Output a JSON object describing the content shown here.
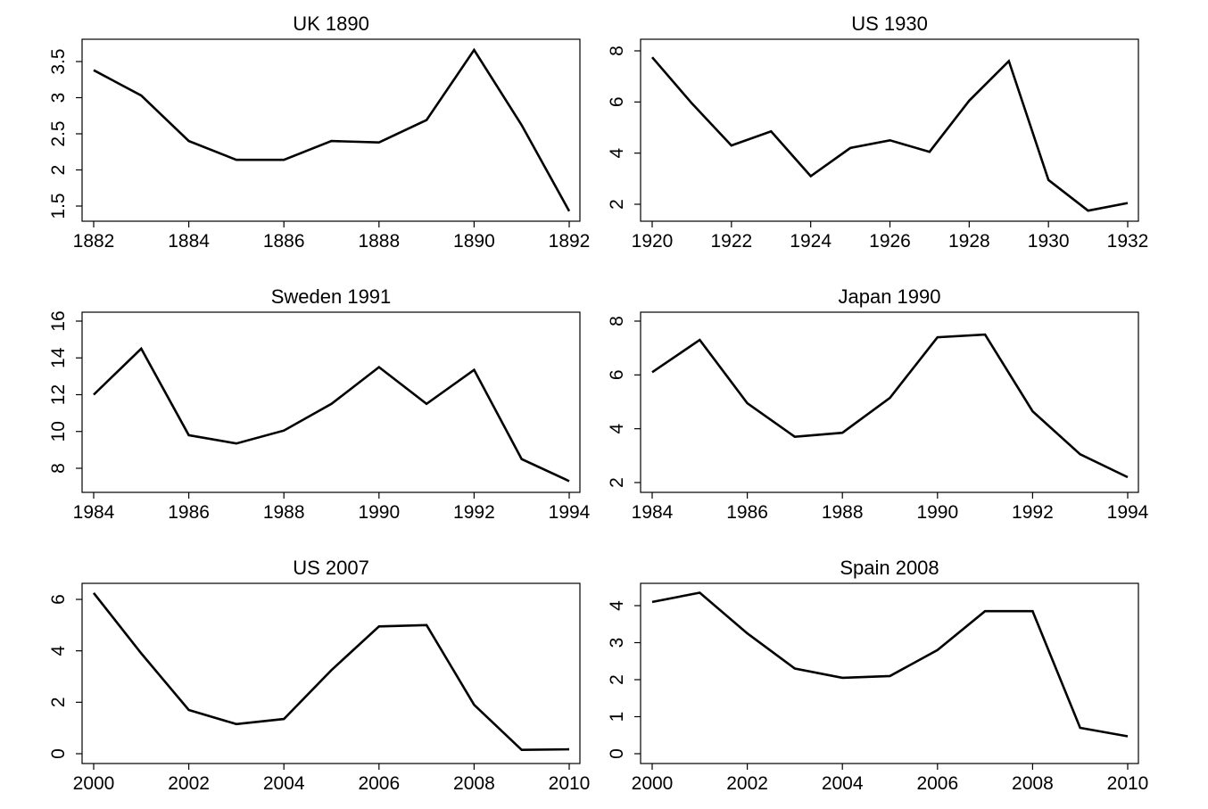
{
  "chart_data": [
    {
      "type": "line",
      "title": "UK 1890",
      "x": [
        1882,
        1883,
        1884,
        1885,
        1886,
        1887,
        1888,
        1889,
        1890,
        1891,
        1892
      ],
      "values": [
        3.38,
        3.03,
        2.4,
        2.14,
        2.14,
        2.4,
        2.38,
        2.69,
        3.66,
        2.62,
        1.43
      ],
      "xlim": [
        1882,
        1892
      ],
      "xticks": [
        "1882",
        "1884",
        "1886",
        "1888",
        "1890",
        "1892"
      ],
      "ylim": [
        1.5,
        3.5
      ],
      "yticks": [
        "1.5",
        "2",
        "2.5",
        "3",
        "3.5"
      ],
      "grid": false
    },
    {
      "type": "line",
      "title": "US 1930",
      "x": [
        1920,
        1921,
        1922,
        1923,
        1924,
        1925,
        1926,
        1927,
        1928,
        1929,
        1930,
        1931,
        1932
      ],
      "values": [
        7.75,
        5.95,
        4.3,
        4.85,
        3.1,
        4.2,
        4.5,
        4.05,
        6.05,
        7.6,
        2.95,
        1.75,
        2.05
      ],
      "xlim": [
        1920,
        1932
      ],
      "xticks": [
        "1920",
        "1922",
        "1924",
        "1926",
        "1928",
        "1930",
        "1932"
      ],
      "ylim": [
        2,
        8
      ],
      "yticks": [
        "2",
        "4",
        "6",
        "8"
      ],
      "grid": false
    },
    {
      "type": "line",
      "title": "Sweden 1991",
      "x": [
        1984,
        1985,
        1986,
        1987,
        1988,
        1989,
        1990,
        1991,
        1992,
        1993,
        1994
      ],
      "values": [
        12.0,
        14.5,
        9.8,
        9.35,
        10.05,
        11.5,
        13.5,
        11.5,
        13.35,
        8.5,
        7.3
      ],
      "xlim": [
        1984,
        1994
      ],
      "xticks": [
        "1984",
        "1986",
        "1988",
        "1990",
        "1992",
        "1994"
      ],
      "ylim": [
        8,
        16
      ],
      "yticks": [
        "8",
        "10",
        "12",
        "14",
        "16"
      ],
      "grid": false
    },
    {
      "type": "line",
      "title": "Japan 1990",
      "x": [
        1984,
        1985,
        1986,
        1987,
        1988,
        1989,
        1990,
        1991,
        1992,
        1993,
        1994
      ],
      "values": [
        6.1,
        7.3,
        4.95,
        3.7,
        3.85,
        5.15,
        7.4,
        7.5,
        4.65,
        3.05,
        2.2
      ],
      "xlim": [
        1984,
        1994
      ],
      "xticks": [
        "1984",
        "1986",
        "1988",
        "1990",
        "1992",
        "1994"
      ],
      "ylim": [
        2,
        8
      ],
      "yticks": [
        "2",
        "4",
        "6",
        "8"
      ],
      "grid": false
    },
    {
      "type": "line",
      "title": "US 2007",
      "x": [
        2000,
        2001,
        2002,
        2003,
        2004,
        2005,
        2006,
        2007,
        2008,
        2009,
        2010
      ],
      "values": [
        6.25,
        3.9,
        1.7,
        1.15,
        1.35,
        3.25,
        4.95,
        5.0,
        1.9,
        0.15,
        0.17
      ],
      "xlim": [
        2000,
        2010
      ],
      "xticks": [
        "2000",
        "2002",
        "2004",
        "2006",
        "2008",
        "2010"
      ],
      "ylim": [
        0,
        6
      ],
      "yticks": [
        "0",
        "2",
        "4",
        "6"
      ],
      "grid": false
    },
    {
      "type": "line",
      "title": "Spain 2008",
      "x": [
        2000,
        2001,
        2002,
        2003,
        2004,
        2005,
        2006,
        2007,
        2008,
        2009,
        2010
      ],
      "values": [
        4.1,
        4.35,
        3.25,
        2.3,
        2.05,
        2.1,
        2.8,
        3.85,
        3.85,
        0.7,
        0.47
      ],
      "xlim": [
        2000,
        2010
      ],
      "xticks": [
        "2000",
        "2002",
        "2004",
        "2006",
        "2008",
        "2010"
      ],
      "ylim": [
        0,
        4
      ],
      "yticks": [
        "0",
        "1",
        "2",
        "3",
        "4"
      ],
      "grid": false
    }
  ]
}
